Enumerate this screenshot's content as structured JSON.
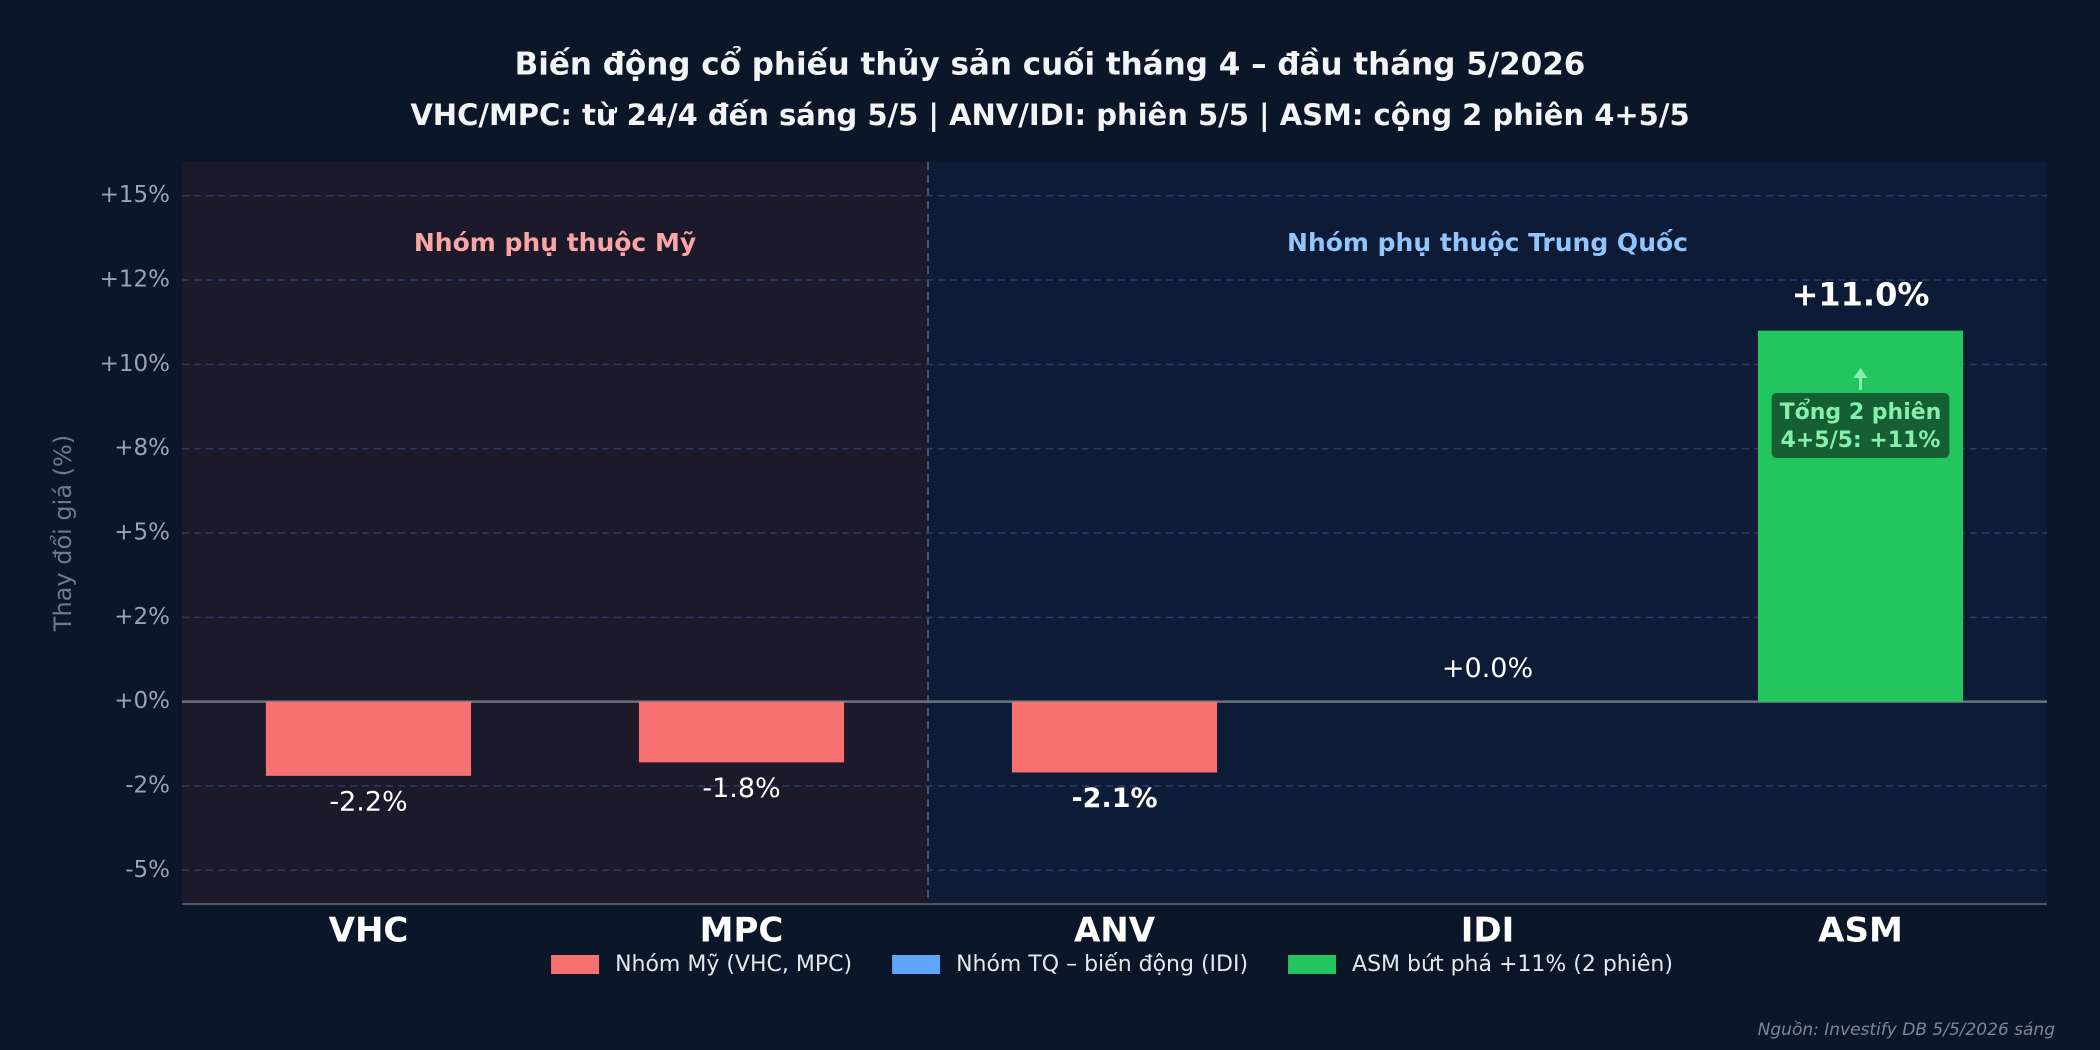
{
  "chart_data": {
    "type": "bar",
    "title": "Biến động cổ phiếu thủy sản cuối tháng 4 – đầu tháng 5/2026",
    "subtitle": "VHC/MPC: từ 24/4 đến sáng 5/5 | ANV/IDI: phiên 5/5 | ASM: cộng 2 phiên 4+5/5",
    "y_label": "Thay đổi giá (%)",
    "categories": [
      "VHC",
      "MPC",
      "ANV",
      "IDI",
      "ASM"
    ],
    "values": [
      -2.2,
      -1.8,
      -2.1,
      0.0,
      11.0
    ],
    "value_labels": [
      "-2.2%",
      "-1.8%",
      "-2.1%",
      "+0.0%",
      "+11.0%"
    ],
    "colors": [
      "#f87171",
      "#f87171",
      "#f87171",
      "#60a5fa",
      "#22c55e"
    ],
    "bold_labels": [
      "ANV",
      "ASM"
    ],
    "ylim": [
      -6,
      16
    ],
    "yticks": [
      {
        "value": -5,
        "label": "-5%"
      },
      {
        "value": -2.5,
        "label": "-2%"
      },
      {
        "value": 0,
        "label": "+0%"
      },
      {
        "value": 2.5,
        "label": "+2%"
      },
      {
        "value": 5,
        "label": "+5%"
      },
      {
        "value": 7.5,
        "label": "+8%"
      },
      {
        "value": 10,
        "label": "+10%"
      },
      {
        "value": 12.5,
        "label": "+12%"
      },
      {
        "value": 15,
        "label": "+15%"
      }
    ],
    "grid": true,
    "groups": [
      {
        "label": "Nhóm phụ thuộc Mỹ",
        "categories": [
          "VHC",
          "MPC"
        ],
        "background": "#1c1a2a",
        "label_color": "#fca5a5"
      },
      {
        "label": "Nhóm phụ thuộc Trung Quốc",
        "categories": [
          "ANV",
          "IDI",
          "ASM"
        ],
        "background": "#0d1b36",
        "label_color": "#93c5fd"
      }
    ],
    "annotation": {
      "lines": [
        "Tổng 2 phiên",
        "4+5/5: +11%"
      ],
      "category": "ASM"
    },
    "legend": [
      {
        "label": "Nhóm Mỹ (VHC, MPC)",
        "color": "#f87171"
      },
      {
        "label": "Nhóm TQ – biến động (IDI)",
        "color": "#60a5fa"
      },
      {
        "label": "ASM bứt phá +11% (2 phiên)",
        "color": "#22c55e"
      }
    ],
    "source": "Nguồn: Investify DB 5/5/2026 sáng"
  }
}
